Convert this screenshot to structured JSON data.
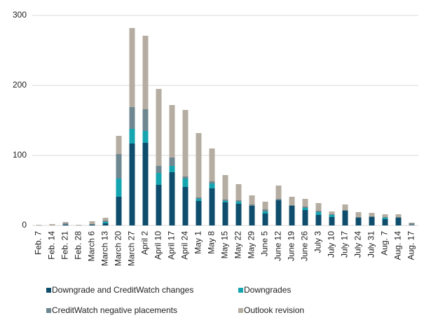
{
  "chart_data": {
    "type": "stacked_bar",
    "categories": [
      "Feb. 7",
      "Feb. 14",
      "Feb. 21",
      "Feb. 28",
      "March 6",
      "March 13",
      "March 20",
      "March 27",
      "April 2",
      "April 10",
      "April 17",
      "April 24",
      "May 1",
      "May 8",
      "May 15",
      "May 22",
      "May 29",
      "June 5",
      "June 12",
      "June 19",
      "June 26",
      "July 3",
      "July 10",
      "July 17",
      "July 24",
      "July 31",
      "Aug. 7",
      "Aug. 14",
      "Aug. 17"
    ],
    "series": [
      {
        "name": "Downgrade and CreditWatch changes",
        "color": "#0e4d6b",
        "values": [
          0,
          0,
          1,
          0,
          1,
          3,
          41,
          117,
          118,
          58,
          76,
          55,
          35,
          53,
          33,
          31,
          28,
          17,
          36,
          28,
          22,
          15,
          12,
          21,
          11,
          12,
          9,
          11,
          0
        ]
      },
      {
        "name": "Downgrades",
        "color": "#14a5b0",
        "values": [
          0,
          0,
          0,
          0,
          0,
          2,
          26,
          21,
          17,
          17,
          9,
          12,
          3,
          7,
          2,
          3,
          0,
          3,
          0,
          0,
          3,
          4,
          3,
          0,
          0,
          0,
          2,
          0,
          0
        ]
      },
      {
        "name": "CreditWatch negative placements",
        "color": "#6f8790",
        "values": [
          0,
          0,
          2,
          0,
          1,
          2,
          35,
          31,
          31,
          10,
          12,
          3,
          2,
          3,
          2,
          2,
          2,
          3,
          2,
          1,
          2,
          2,
          1,
          1,
          1,
          1,
          1,
          1,
          3
        ]
      },
      {
        "name": "Outlook revision",
        "color": "#b5ada1",
        "values": [
          1,
          2,
          2,
          1,
          4,
          4,
          26,
          113,
          105,
          110,
          75,
          95,
          92,
          47,
          35,
          23,
          13,
          11,
          19,
          12,
          11,
          11,
          4,
          8,
          7,
          5,
          4,
          4,
          1
        ]
      }
    ],
    "ylim": [
      0,
      300
    ],
    "yticks": [
      0,
      100,
      200,
      300
    ],
    "grid": true,
    "legend": "bottom"
  }
}
